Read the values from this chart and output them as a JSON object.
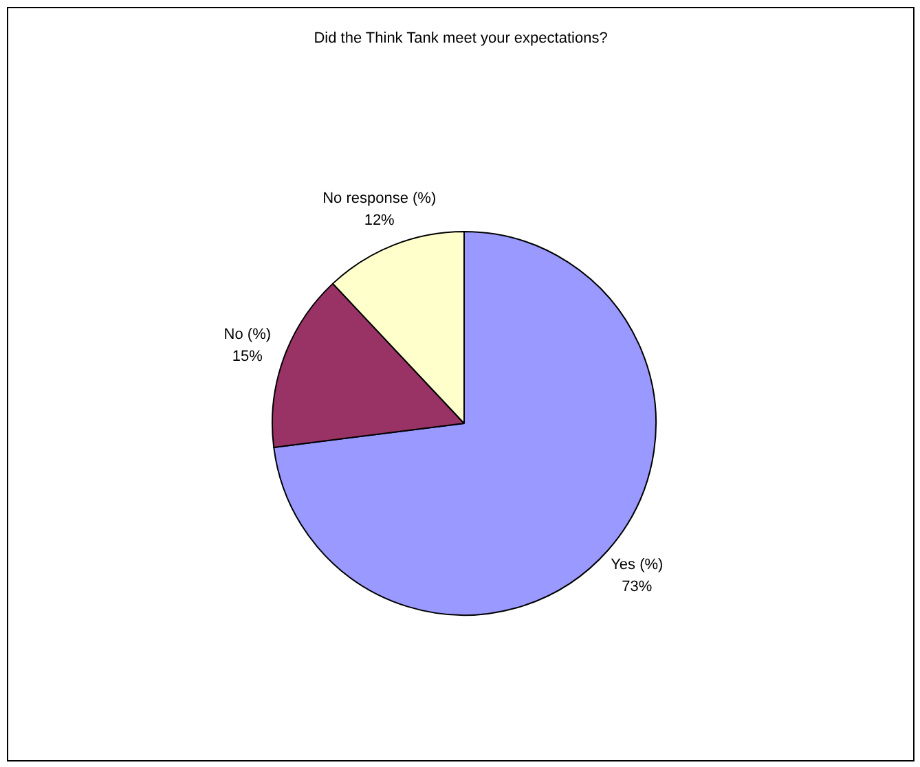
{
  "chart_data": {
    "type": "pie",
    "title": "Did the Think Tank meet your expectations?",
    "categories": [
      "Yes (%)",
      "No (%)",
      "No response (%)"
    ],
    "values": [
      73,
      15,
      12
    ],
    "value_labels": [
      "73%",
      "15%",
      "12%"
    ],
    "colors": [
      "#9999ff",
      "#993366",
      "#ffffcc"
    ]
  }
}
